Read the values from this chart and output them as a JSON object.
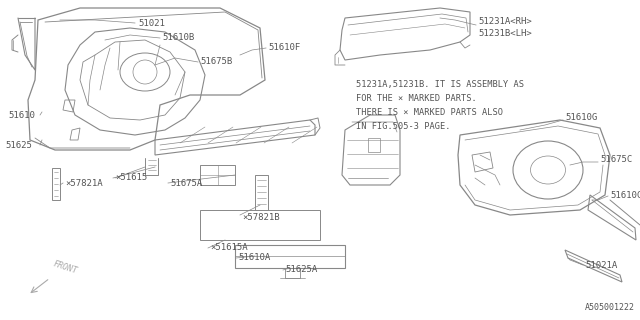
{
  "bg_color": "#ffffff",
  "line_color": "#888888",
  "text_color": "#555555",
  "font_size": 6.5,
  "note_lines": [
    "51231A,51231B. IT IS ASSEMBLY AS",
    "FOR THE × MARKED PARTS.",
    "THERE IS × MARKED PARTS ALSO",
    "IN FIG.505-3 PAGE."
  ],
  "diagram_id": "A505001222"
}
